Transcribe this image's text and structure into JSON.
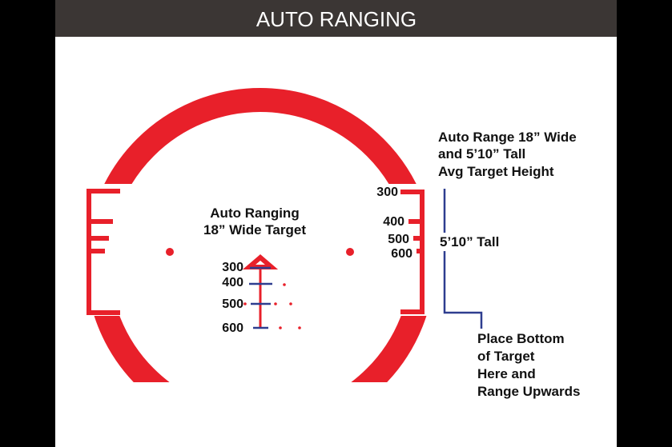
{
  "header": {
    "title": "AUTO RANGING"
  },
  "center_note": {
    "line1": "Auto Ranging",
    "line2": "18” Wide Target"
  },
  "center_ranges": [
    "300",
    "400",
    "500",
    "600"
  ],
  "right_ranges": [
    "300",
    "400",
    "500",
    "600"
  ],
  "right_note": {
    "line1": "Auto Range 18” Wide",
    "line2": "and 5’10” Tall",
    "line3": "Avg Target Height"
  },
  "height_label": "5’10” Tall",
  "bottom_note": {
    "line1": "Place Bottom",
    "line2": "of Target",
    "line3": "Here and",
    "line4": "Range Upwards"
  },
  "colors": {
    "reticle": "#e8202a",
    "guide": "#2e3d8f",
    "header": "#3b3634"
  }
}
